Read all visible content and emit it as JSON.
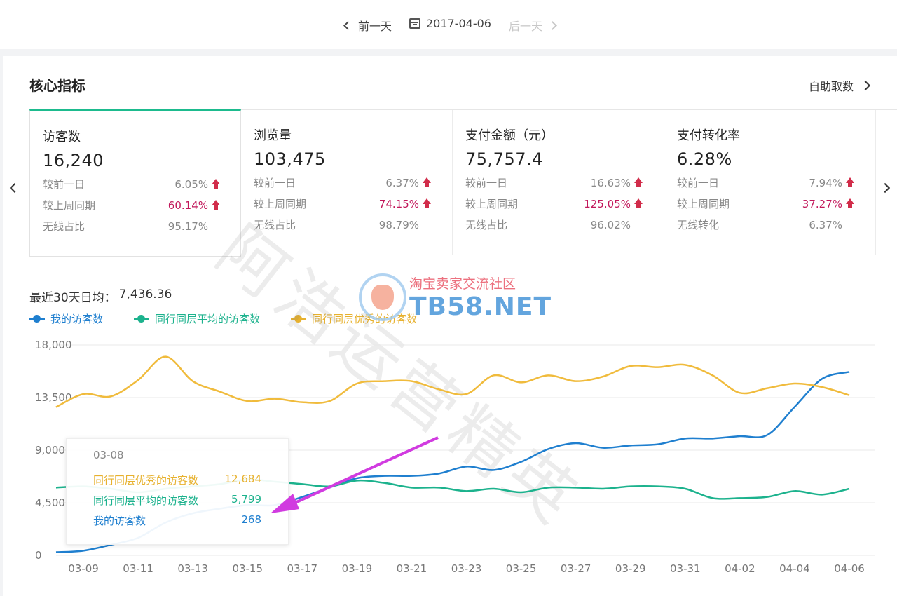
{
  "datebar": {
    "prev": "前一天",
    "date": "2017-04-06",
    "next": "后一天"
  },
  "section": {
    "title": "核心指标",
    "self_fetch": "自助取数"
  },
  "metrics": [
    {
      "name": "访客数",
      "value": "16,240",
      "rows": [
        {
          "label": "较前一日",
          "value": "6.05%",
          "hot": false
        },
        {
          "label": "较上周同期",
          "value": "60.14%",
          "hot": true
        },
        {
          "label": "无线占比",
          "value": "95.17%",
          "hot": false
        }
      ]
    },
    {
      "name": "浏览量",
      "value": "103,475",
      "rows": [
        {
          "label": "较前一日",
          "value": "6.37%",
          "hot": false
        },
        {
          "label": "较上周同期",
          "value": "74.15%",
          "hot": true
        },
        {
          "label": "无线占比",
          "value": "98.79%",
          "hot": false
        }
      ]
    },
    {
      "name": "支付金额（元）",
      "value": "75,757.4",
      "rows": [
        {
          "label": "较前一日",
          "value": "16.63%",
          "hot": false
        },
        {
          "label": "较上周同期",
          "value": "125.05%",
          "hot": true
        },
        {
          "label": "无线占比",
          "value": "96.02%",
          "hot": false
        }
      ]
    },
    {
      "name": "支付转化率",
      "value": "6.28%",
      "rows": [
        {
          "label": "较前一日",
          "value": "7.94%",
          "hot": false
        },
        {
          "label": "较上周同期",
          "value": "37.27%",
          "hot": true
        },
        {
          "label": "无线转化",
          "value": "6.37%",
          "hot": false
        }
      ]
    }
  ],
  "avg": {
    "label": "最近30天日均：",
    "value": "7,436.36"
  },
  "colors": {
    "mine": "#1f7fcf",
    "avg": "#1cb28d",
    "top": "#f0bb3c",
    "accent": "#1dbb8e"
  },
  "tooltip": {
    "date": "03-08",
    "rows": [
      {
        "name": "同行同层优秀的访客数",
        "value": "12,684",
        "series": "top"
      },
      {
        "name": "同行同层平均的访客数",
        "value": "5,799",
        "series": "avg"
      },
      {
        "name": "我的访客数",
        "value": "268",
        "series": "mine"
      }
    ]
  },
  "watermark": {
    "text": "阿浩运营精英",
    "site_cn": "淘宝卖家交流社区",
    "site": "TB58.NET"
  },
  "chart_data": {
    "type": "line",
    "title": "",
    "xlabel": "",
    "ylabel": "",
    "ylim": [
      0,
      18000
    ],
    "yticks": [
      "0",
      "4,500",
      "9,000",
      "13,500",
      "18,000"
    ],
    "x": [
      "03-08",
      "03-09",
      "03-10",
      "03-11",
      "03-12",
      "03-13",
      "03-14",
      "03-15",
      "03-16",
      "03-17",
      "03-18",
      "03-19",
      "03-20",
      "03-21",
      "03-22",
      "03-23",
      "03-24",
      "03-25",
      "03-26",
      "03-27",
      "03-28",
      "03-29",
      "03-30",
      "03-31",
      "04-01",
      "04-02",
      "04-03",
      "04-04",
      "04-05",
      "04-06"
    ],
    "xticks": [
      "03-09",
      "03-11",
      "03-13",
      "03-15",
      "03-17",
      "03-19",
      "03-21",
      "03-23",
      "03-25",
      "03-27",
      "03-29",
      "03-31",
      "04-02",
      "04-04",
      "04-06"
    ],
    "series": [
      {
        "key": "mine",
        "name": "我的访客数",
        "values": [
          268,
          400,
          900,
          1500,
          2800,
          3600,
          4000,
          4300,
          4300,
          5000,
          5800,
          6600,
          6800,
          6800,
          7000,
          7600,
          7300,
          8000,
          9100,
          9600,
          9200,
          9400,
          9500,
          10000,
          10000,
          10200,
          10300,
          12700,
          15100,
          15700
        ]
      },
      {
        "key": "avg",
        "name": "同行同层平均的访客数",
        "values": [
          5799,
          5900,
          5700,
          5400,
          5700,
          5900,
          6100,
          6500,
          6300,
          6100,
          5900,
          6400,
          6200,
          5800,
          5800,
          5500,
          5700,
          5400,
          5800,
          5800,
          5700,
          5900,
          5900,
          5700,
          4900,
          4900,
          5000,
          5500,
          5200,
          5700
        ]
      },
      {
        "key": "top",
        "name": "同行同层优秀的访客数",
        "values": [
          12684,
          13800,
          13600,
          15000,
          17000,
          14900,
          14000,
          13200,
          13400,
          13100,
          13200,
          14700,
          14900,
          14900,
          14200,
          13800,
          15400,
          14800,
          15400,
          14900,
          15300,
          16200,
          16100,
          16300,
          15400,
          13900,
          14300,
          14700,
          14400,
          13700
        ]
      }
    ]
  }
}
